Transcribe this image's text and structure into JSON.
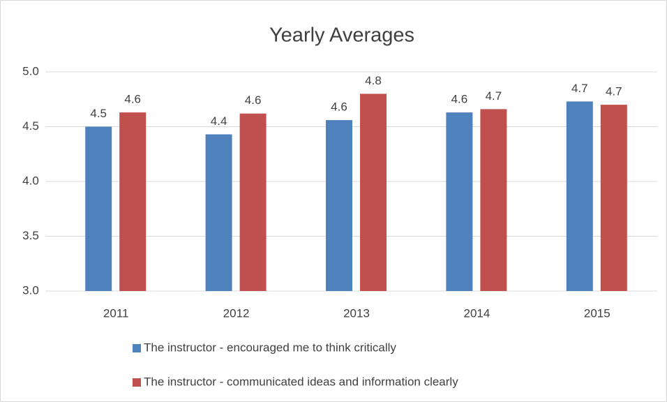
{
  "chart_data": {
    "type": "bar",
    "title": "Yearly Averages",
    "categories": [
      "2011",
      "2012",
      "2013",
      "2014",
      "2015"
    ],
    "series": [
      {
        "name": "The instructor - encouraged me to think critically",
        "color": "#4f81bd",
        "values": [
          4.5,
          4.43,
          4.56,
          4.63,
          4.73
        ],
        "value_labels": [
          "4.5",
          "4.4",
          "4.6",
          "4.6",
          "4.7"
        ]
      },
      {
        "name": "The instructor - communicated ideas and information clearly",
        "color": "#c0504d",
        "values": [
          4.63,
          4.62,
          4.8,
          4.66,
          4.7
        ],
        "value_labels": [
          "4.6",
          "4.6",
          "4.8",
          "4.7",
          "4.7"
        ]
      }
    ],
    "ylim": [
      3.0,
      5.0
    ],
    "yticks": [
      {
        "value": 3.0,
        "label": "3.0"
      },
      {
        "value": 3.5,
        "label": "3.5"
      },
      {
        "value": 4.0,
        "label": "4.0"
      },
      {
        "value": 4.5,
        "label": "4.5"
      },
      {
        "value": 5.0,
        "label": "5.0"
      }
    ],
    "grid": true
  }
}
